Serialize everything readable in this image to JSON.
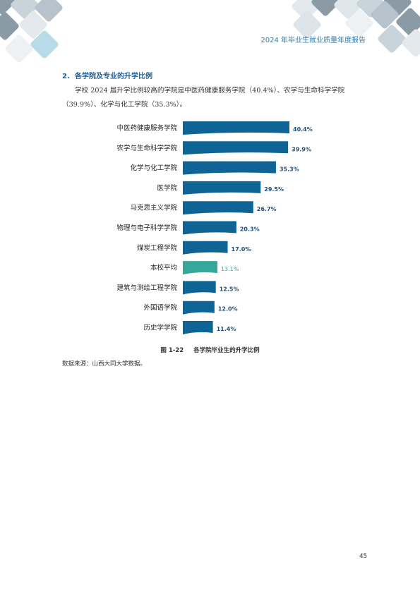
{
  "header": {
    "report_title": "2024 年毕业生就业质量年度报告"
  },
  "section": {
    "number": "2.",
    "title": "各学院及专业的升学比例"
  },
  "paragraph": "学校 2024 届升学比例较高的学院是中医药健康服务学院（40.4%）、农学与生命科学学院（39.9%）、化学与化工学院（35.3%）。",
  "chart_data": {
    "type": "bar",
    "orientation": "horizontal",
    "categories": [
      "中医药健康服务学院",
      "农学与生命科学学院",
      "化学与化工学院",
      "医学院",
      "马克思主义学院",
      "物理与电子科学学院",
      "煤炭工程学院",
      "本校平均",
      "建筑与测绘工程学院",
      "外国语学院",
      "历史学学院"
    ],
    "values": [
      40.4,
      39.9,
      35.3,
      29.5,
      26.7,
      20.3,
      17.0,
      13.1,
      12.5,
      12.0,
      11.4
    ],
    "value_labels": [
      "40.4%",
      "39.9%",
      "35.3%",
      "29.5%",
      "26.7%",
      "20.3%",
      "17.0%",
      "13.1%",
      "12.5%",
      "12.0%",
      "11.4%"
    ],
    "highlight_index": 7,
    "xlim": [
      0,
      45
    ],
    "grid": false,
    "colors": {
      "bar": "#0e6494",
      "highlight": "#35a89b"
    }
  },
  "caption": {
    "number": "图 1-22",
    "text": "各学院毕业生的升学比例"
  },
  "source": "数据来源：山西大同大学数据。",
  "page_number": "45",
  "decor_colors": [
    "#8a9ba6",
    "#c9d3da",
    "#dfe6eb",
    "#b8dbe8",
    "#edf1f4"
  ]
}
